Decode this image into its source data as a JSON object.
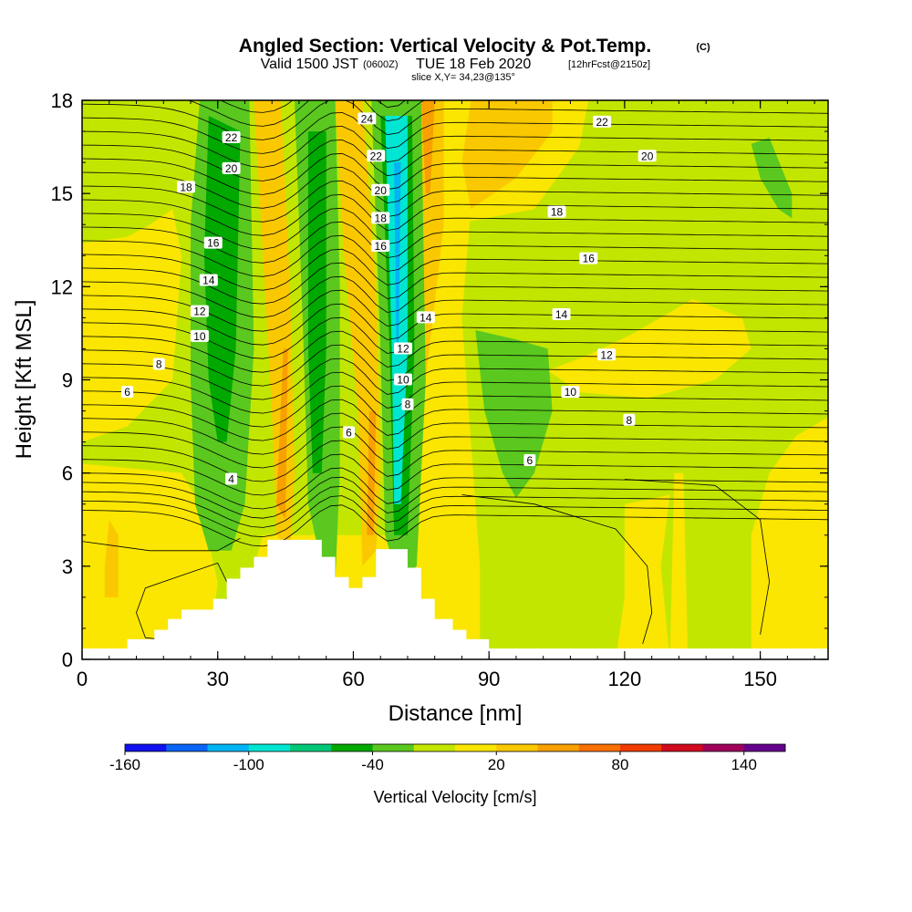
{
  "title": {
    "main": "Angled Section: Vertical Velocity & Pot.Temp.",
    "main_units": "(C)",
    "valid_prefix": "Valid 1500 JST",
    "valid_utc": "(0600Z)",
    "valid_date": "TUE 18 Feb 2020",
    "forecast_info": "[12hrFcst@2150z]",
    "slice": "slice X,Y= 34,23@135°"
  },
  "chart_data": {
    "type": "contour",
    "xlabel": "Distance [nm]",
    "ylabel": "Height [Kft MSL]",
    "xlim": [
      0,
      165
    ],
    "ylim": [
      0,
      18
    ],
    "x_ticks": [
      "0",
      "30",
      "60",
      "90",
      "120",
      "150"
    ],
    "x_tick_values": [
      0,
      30,
      60,
      90,
      120,
      150
    ],
    "y_ticks": [
      "0",
      "3",
      "6",
      "9",
      "12",
      "15",
      "18"
    ],
    "y_tick_values": [
      0,
      3,
      6,
      9,
      12,
      15,
      18
    ],
    "colorbar": {
      "title": "Vertical Velocity [cm/s]",
      "tick_labels": [
        "-160",
        "-100",
        "-40",
        "20",
        "80",
        "140"
      ],
      "tick_values": [
        -160,
        -100,
        -40,
        20,
        80,
        140
      ],
      "levels": [
        -160,
        -140,
        -120,
        -100,
        -80,
        -60,
        -40,
        -20,
        0,
        20,
        40,
        60,
        80,
        100,
        120,
        140,
        160
      ],
      "colors": [
        "#1010f0",
        "#0a64f5",
        "#00b4f5",
        "#00e6d2",
        "#00c878",
        "#00a800",
        "#5ac81e",
        "#c3e600",
        "#fae600",
        "#fac800",
        "#f8a000",
        "#f87000",
        "#f03c00",
        "#d20a1e",
        "#a0005a",
        "#64008c"
      ]
    },
    "background_value_range": [
      0,
      20
    ],
    "velocity_bands": [
      {
        "name": "downdraft-west",
        "x": [
          22,
          38
        ],
        "z": [
          3,
          18
        ],
        "value": -40
      },
      {
        "name": "updraft-west",
        "x": [
          40,
          47
        ],
        "z": [
          2.5,
          18
        ],
        "value": 40
      },
      {
        "name": "downdraft-mid",
        "x": [
          48,
          56
        ],
        "z": [
          2,
          18
        ],
        "value": -40
      },
      {
        "name": "updraft-mid",
        "x": [
          58,
          66
        ],
        "z": [
          2,
          18
        ],
        "value": 40
      },
      {
        "name": "downdraft-core",
        "x": [
          66,
          75
        ],
        "z": [
          2,
          18
        ],
        "value": -100
      },
      {
        "name": "updraft-east",
        "x": [
          74,
          80
        ],
        "z": [
          4,
          18
        ],
        "value": 60
      },
      {
        "name": "downdraft-east",
        "x": [
          87,
          104
        ],
        "z": [
          5,
          11
        ],
        "value": -40
      },
      {
        "name": "downdraft-far-east",
        "x": [
          148,
          158
        ],
        "z": [
          14,
          17
        ],
        "value": -40
      }
    ],
    "pot_temp_labels": [
      {
        "text": "24",
        "x": 63,
        "z": 17.4
      },
      {
        "text": "22",
        "x": 33,
        "z": 16.8
      },
      {
        "text": "22",
        "x": 65,
        "z": 16.2
      },
      {
        "text": "22",
        "x": 115,
        "z": 17.3
      },
      {
        "text": "20",
        "x": 33,
        "z": 15.8
      },
      {
        "text": "20",
        "x": 66,
        "z": 15.1
      },
      {
        "text": "20",
        "x": 125,
        "z": 16.2
      },
      {
        "text": "18",
        "x": 23,
        "z": 15.2
      },
      {
        "text": "18",
        "x": 66,
        "z": 14.2
      },
      {
        "text": "18",
        "x": 105,
        "z": 14.4
      },
      {
        "text": "16",
        "x": 29,
        "z": 13.4
      },
      {
        "text": "16",
        "x": 66,
        "z": 13.3
      },
      {
        "text": "16",
        "x": 112,
        "z": 12.9
      },
      {
        "text": "14",
        "x": 28,
        "z": 12.2
      },
      {
        "text": "14",
        "x": 76,
        "z": 11.0
      },
      {
        "text": "14",
        "x": 106,
        "z": 11.1
      },
      {
        "text": "12",
        "x": 26,
        "z": 11.2
      },
      {
        "text": "12",
        "x": 71,
        "z": 10.0
      },
      {
        "text": "12",
        "x": 116,
        "z": 9.8
      },
      {
        "text": "10",
        "x": 26,
        "z": 10.4
      },
      {
        "text": "10",
        "x": 71,
        "z": 9.0
      },
      {
        "text": "10",
        "x": 108,
        "z": 8.6
      },
      {
        "text": "8",
        "x": 17,
        "z": 9.5
      },
      {
        "text": "8",
        "x": 72,
        "z": 8.2
      },
      {
        "text": "8",
        "x": 121,
        "z": 7.7
      },
      {
        "text": "6",
        "x": 10,
        "z": 8.6
      },
      {
        "text": "6",
        "x": 59,
        "z": 7.3
      },
      {
        "text": "6",
        "x": 99,
        "z": 6.4
      },
      {
        "text": "4",
        "x": 33,
        "z": 5.8
      }
    ],
    "terrain_kft": [
      [
        0,
        0.35
      ],
      [
        10,
        0.35
      ],
      [
        10,
        0.65
      ],
      [
        16,
        0.65
      ],
      [
        16,
        0.95
      ],
      [
        19,
        0.95
      ],
      [
        19,
        1.3
      ],
      [
        22,
        1.3
      ],
      [
        22,
        1.6
      ],
      [
        29,
        1.6
      ],
      [
        29,
        1.95
      ],
      [
        32,
        1.95
      ],
      [
        32,
        2.6
      ],
      [
        35,
        2.6
      ],
      [
        35,
        2.95
      ],
      [
        38,
        2.95
      ],
      [
        38,
        3.3
      ],
      [
        41,
        3.3
      ],
      [
        41,
        3.85
      ],
      [
        53,
        3.85
      ],
      [
        53,
        3.3
      ],
      [
        56,
        3.3
      ],
      [
        56,
        2.65
      ],
      [
        59,
        2.65
      ],
      [
        59,
        2.3
      ],
      [
        62,
        2.3
      ],
      [
        62,
        2.65
      ],
      [
        65,
        2.65
      ],
      [
        65,
        3.55
      ],
      [
        72,
        3.55
      ],
      [
        72,
        2.95
      ],
      [
        75,
        2.95
      ],
      [
        75,
        1.95
      ],
      [
        78,
        1.95
      ],
      [
        78,
        1.3
      ],
      [
        82,
        1.3
      ],
      [
        82,
        0.95
      ],
      [
        85,
        0.95
      ],
      [
        85,
        0.65
      ],
      [
        90,
        0.65
      ],
      [
        90,
        0.35
      ],
      [
        165,
        0.35
      ]
    ]
  }
}
